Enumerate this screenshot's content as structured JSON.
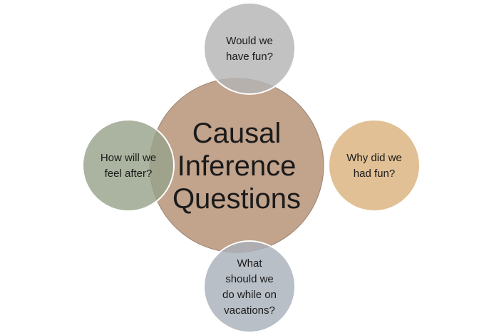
{
  "center": {
    "lines": [
      "Causal",
      "Inference",
      "Questions"
    ],
    "color": "#c2a38c"
  },
  "satellites": [
    {
      "id": "top",
      "lines": [
        "Would we",
        "have fun?"
      ],
      "color": "#b4b4b6"
    },
    {
      "id": "right",
      "lines": [
        "Why did we",
        "had fun?"
      ],
      "color": "#dab27e",
      "overlap_color": "#d4a540"
    },
    {
      "id": "bottom",
      "lines": [
        "What",
        "should we",
        "do while on",
        "vacations?"
      ],
      "color": "#a9b1bb"
    },
    {
      "id": "left",
      "lines": [
        "How will we",
        "feel after?"
      ],
      "color": "#98a48b"
    }
  ],
  "colors": {
    "center_edge": "#9c8472",
    "satellite_edge": "#ffffff",
    "background": "#ffffff"
  }
}
